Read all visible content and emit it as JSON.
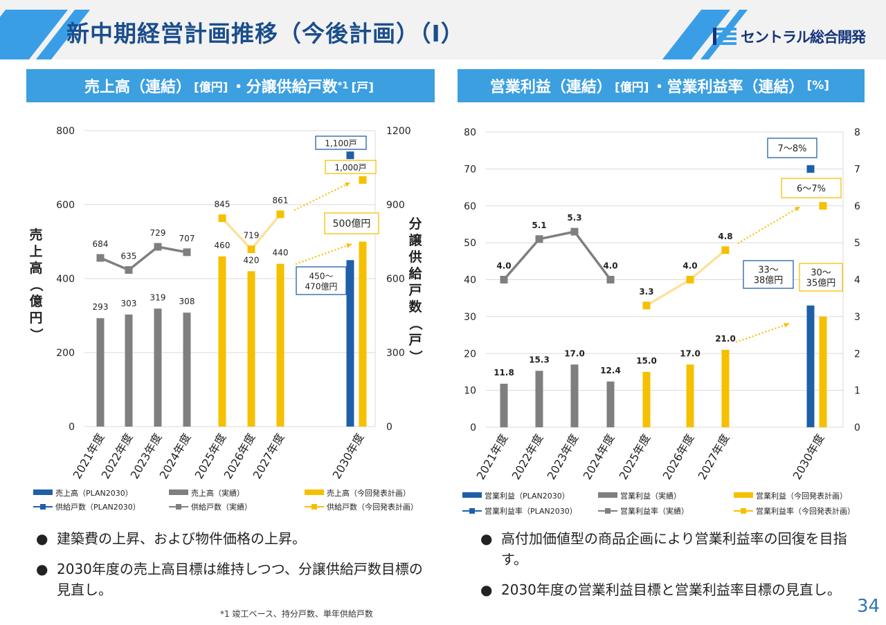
{
  "title": "新中期経営計画推移（今後計画）（Ⅰ）",
  "logo_text": "セントラル総合開発",
  "colors": {
    "plan": "#1f5fa8",
    "actual": "#7f7f7f",
    "new_plan": "#f5c000",
    "header_stripe": "#3a9ee6",
    "title_text": "#1a4e8c",
    "panel_bg": "#3b9fe0"
  },
  "left_panel": {
    "title_a": "売上高（連結）",
    "unit_a": "[億円]",
    "title_b": "・分譲供給戸数",
    "title_sup": "*1",
    "unit_b": "[戸]"
  },
  "right_panel": {
    "title_a": "営業利益（連結）",
    "unit_a": "[億円]",
    "title_b": "・営業利益率（連結）",
    "unit_b": "[%]"
  },
  "chart_data": [
    {
      "type": "bar",
      "categories": [
        "2021年度",
        "2022年度",
        "2023年度",
        "2024年度",
        "2025年度",
        "2026年度",
        "2027年度",
        "2030年度"
      ],
      "ylabel": "売上高（億円）",
      "y2label": "分譲供給戸数（戸）",
      "ylim": [
        0,
        800
      ],
      "y2lim": [
        0,
        1200
      ],
      "yticks": [
        "0",
        "200",
        "400",
        "600",
        "800"
      ],
      "y2ticks": [
        "0",
        "300",
        "600",
        "900",
        "1200"
      ],
      "series": [
        {
          "name": "売上高（PLAN2030）",
          "kind": "bar",
          "axis": "left",
          "color": "#1f5fa8",
          "values": [
            null,
            null,
            null,
            null,
            null,
            null,
            null,
            450
          ]
        },
        {
          "name": "売上高（実績）",
          "kind": "bar",
          "axis": "left",
          "color": "#7f7f7f",
          "values": [
            293,
            303,
            319,
            308,
            null,
            null,
            null,
            null
          ]
        },
        {
          "name": "売上高（今回発表計画）",
          "kind": "bar",
          "axis": "left",
          "color": "#f5c000",
          "values": [
            null,
            null,
            null,
            null,
            460,
            420,
            440,
            500
          ]
        },
        {
          "name": "供給戸数（PLAN2030）",
          "kind": "line",
          "axis": "right",
          "color": "#1f5fa8",
          "values": [
            null,
            null,
            null,
            null,
            null,
            null,
            null,
            1100
          ]
        },
        {
          "name": "供給戸数（実績）",
          "kind": "line",
          "axis": "right",
          "color": "#7f7f7f",
          "values": [
            684,
            635,
            729,
            707,
            null,
            null,
            null,
            null
          ]
        },
        {
          "name": "供給戸数（今回発表計画）",
          "kind": "line",
          "axis": "right",
          "color": "#f5c000",
          "values": [
            null,
            null,
            null,
            null,
            845,
            719,
            861,
            1000
          ]
        }
      ],
      "annotations": [
        "1,100戸",
        "1,000戸",
        "500億円",
        "450〜\n470億円"
      ]
    },
    {
      "type": "bar",
      "categories": [
        "2021年度",
        "2022年度",
        "2023年度",
        "2024年度",
        "2025年度",
        "2026年度",
        "2027年度",
        "2030年度"
      ],
      "ylim": [
        0,
        80
      ],
      "y2lim": [
        0,
        8
      ],
      "yticks": [
        "0",
        "10",
        "20",
        "30",
        "40",
        "50",
        "60",
        "70",
        "80"
      ],
      "y2ticks": [
        "0",
        "1",
        "2",
        "3",
        "4",
        "5",
        "6",
        "7",
        "8"
      ],
      "series": [
        {
          "name": "営業利益（PLAN2030）",
          "kind": "bar",
          "axis": "left",
          "color": "#1f5fa8",
          "values": [
            null,
            null,
            null,
            null,
            null,
            null,
            null,
            33
          ]
        },
        {
          "name": "営業利益（実績）",
          "kind": "bar",
          "axis": "left",
          "color": "#7f7f7f",
          "values": [
            11.8,
            15.3,
            17.0,
            12.4,
            null,
            null,
            null,
            null
          ]
        },
        {
          "name": "営業利益（今回発表計画）",
          "kind": "bar",
          "axis": "left",
          "color": "#f5c000",
          "values": [
            null,
            null,
            null,
            null,
            15.0,
            17.0,
            21.0,
            30
          ]
        },
        {
          "name": "営業利益率（PLAN2030）",
          "kind": "line",
          "axis": "right",
          "color": "#1f5fa8",
          "values": [
            null,
            null,
            null,
            null,
            null,
            null,
            null,
            7
          ]
        },
        {
          "name": "営業利益率（実績）",
          "kind": "line",
          "axis": "right",
          "color": "#7f7f7f",
          "values": [
            4.0,
            5.1,
            5.3,
            4.0,
            null,
            null,
            null,
            null
          ]
        },
        {
          "name": "営業利益率（今回発表計画）",
          "kind": "line",
          "axis": "right",
          "color": "#f5c000",
          "values": [
            null,
            null,
            null,
            null,
            3.3,
            4.0,
            4.8,
            6
          ]
        }
      ],
      "annotations": [
        "7〜8%",
        "6〜7%",
        "33〜\n38億円",
        "30〜\n35億円"
      ]
    }
  ],
  "bullets_left": [
    "建築費の上昇、および物件価格の上昇。",
    "2030年度の売上高目標は維持しつつ、分譲供給戸数目標の見直し。"
  ],
  "bullets_right": [
    "高付加価値型の商品企画により営業利益率の回復を目指す。",
    "2030年度の営業利益目標と営業利益率目標の見直し。"
  ],
  "bullet_symbol": "●",
  "footnote": "*1 竣工ベース、持分戸数、単年供給戸数",
  "page_number": "34"
}
